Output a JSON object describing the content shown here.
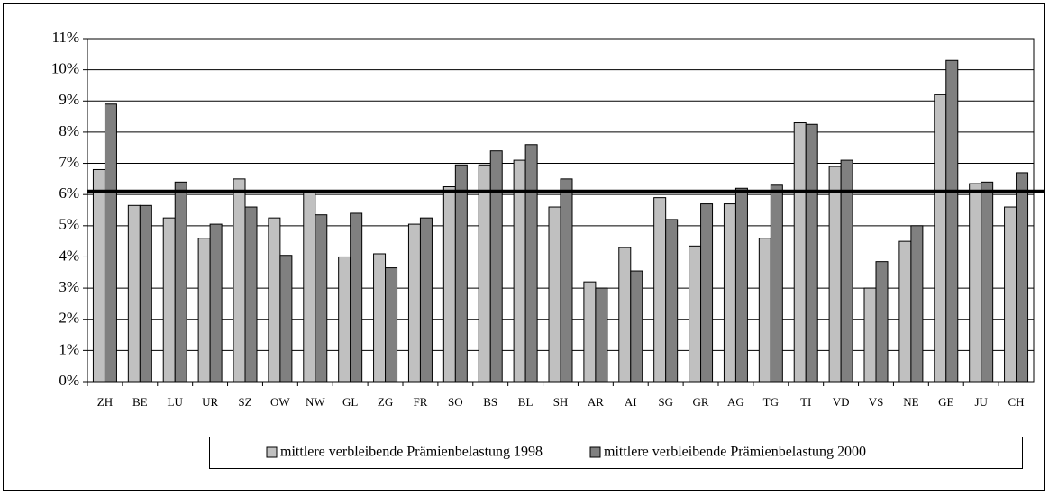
{
  "chart_data": {
    "type": "bar",
    "categories": [
      "ZH",
      "BE",
      "LU",
      "UR",
      "SZ",
      "OW",
      "NW",
      "GL",
      "ZG",
      "FR",
      "SO",
      "BS",
      "BL",
      "SH",
      "AR",
      "AI",
      "SG",
      "GR",
      "AG",
      "TG",
      "TI",
      "VD",
      "VS",
      "NE",
      "GE",
      "JU",
      "CH"
    ],
    "series": [
      {
        "name": "mittlere verbleibende Prämienbelastung 1998",
        "color": "#c0c0c0",
        "values": [
          6.8,
          5.65,
          5.25,
          4.6,
          6.5,
          5.25,
          6.05,
          4.0,
          4.1,
          5.05,
          6.25,
          6.95,
          7.1,
          5.6,
          3.2,
          4.3,
          5.9,
          4.35,
          5.7,
          4.6,
          8.3,
          6.9,
          3.0,
          4.5,
          9.2,
          6.35,
          5.6
        ]
      },
      {
        "name": "mittlere verbleibende Prämienbelastung 2000",
        "color": "#808080",
        "values": [
          8.9,
          5.65,
          6.4,
          5.05,
          5.6,
          4.05,
          5.35,
          5.4,
          3.65,
          5.25,
          6.95,
          7.4,
          7.6,
          6.5,
          3.0,
          3.55,
          5.2,
          5.7,
          6.2,
          6.3,
          8.25,
          7.1,
          3.85,
          5.0,
          10.3,
          6.4,
          6.7
        ]
      }
    ],
    "reference_line": 6.1,
    "ylim": [
      0,
      11
    ],
    "yticks": [
      {
        "value": 0,
        "label": "0%"
      },
      {
        "value": 1,
        "label": "1%"
      },
      {
        "value": 2,
        "label": "2%"
      },
      {
        "value": 3,
        "label": "3%"
      },
      {
        "value": 4,
        "label": "4%"
      },
      {
        "value": 5,
        "label": "5%"
      },
      {
        "value": 6,
        "label": "6%"
      },
      {
        "value": 7,
        "label": "7%"
      },
      {
        "value": 8,
        "label": "8%"
      },
      {
        "value": 9,
        "label": "9%"
      },
      {
        "value": 10,
        "label": "10%"
      },
      {
        "value": 11,
        "label": "11%"
      }
    ],
    "grid": true,
    "legend": "bottom"
  }
}
